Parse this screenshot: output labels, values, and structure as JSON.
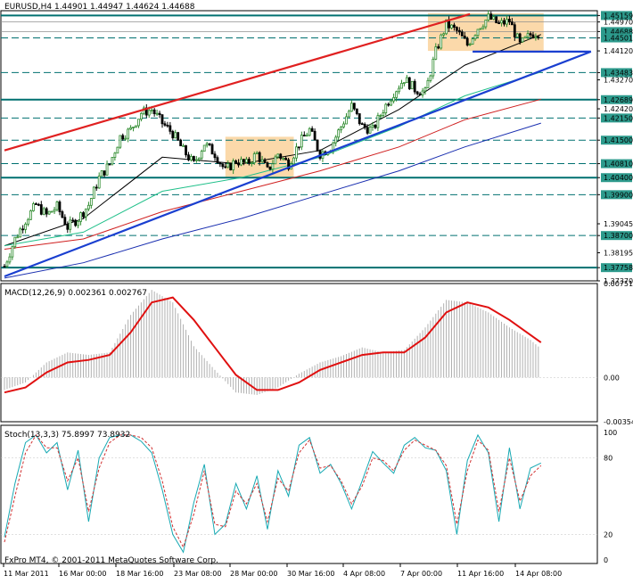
{
  "chart_data": [
    {
      "type": "candlestick",
      "title": "EURUSD,H4  1.44901 1.44947 1.44624 1.44688",
      "quote": {
        "open": 1.44901,
        "high": 1.44947,
        "low": 1.44624,
        "close": 1.44688
      },
      "ylim": [
        1.3737,
        1.453
      ],
      "price_axis_labels": [
        "1.45159",
        "1.44970",
        "1.44688",
        "1.44501",
        "1.44120",
        "1.43483",
        "1.43270",
        "1.42689",
        "1.42420",
        "1.42150",
        "1.41500",
        "1.40810",
        "1.40400",
        "1.39900",
        "1.39045",
        "1.38700",
        "1.38195",
        "1.37758",
        "1.37370"
      ],
      "highlighted_levels": [
        1.45159,
        1.44688,
        1.44501,
        1.43483,
        1.42689,
        1.4215,
        1.415,
        1.4081,
        1.404,
        1.399,
        1.387,
        1.37758
      ],
      "x_labels": [
        "11 Mar 2011",
        "16 Mar 00:00",
        "18 Mar 16:00",
        "23 Mar 08:00",
        "28 Mar 00:00",
        "30 Mar 16:00",
        "4 Apr 08:00",
        "7 Apr 00:00",
        "11 Apr 16:00",
        "14 Apr 08:00"
      ],
      "horizontal_lines": {
        "solid": [
          1.45159,
          1.42689,
          1.404,
          1.37758
        ],
        "dashed": [
          1.44501,
          1.43483,
          1.4215,
          1.415,
          1.4081,
          1.399,
          1.387
        ],
        "thin": [
          1.4497,
          1.44688
        ]
      },
      "trend_lines": [
        {
          "color": "#e02020",
          "from": [
            0,
            1.412
          ],
          "to": [
            177,
            1.452
          ]
        },
        {
          "color": "#1a3fd0",
          "from": [
            0,
            1.375
          ],
          "to": [
            223,
            1.441
          ]
        },
        {
          "color": "#1a3fd0",
          "from": [
            178,
            1.441
          ],
          "to": [
            223,
            1.441
          ]
        }
      ],
      "boxes": [
        {
          "color": "#fbd9aa",
          "x": [
            84,
            110
          ],
          "y": [
            1.4042,
            1.416
          ]
        },
        {
          "color": "#fbd9aa",
          "x": [
            161,
            205
          ],
          "y": [
            1.4412,
            1.4523
          ]
        }
      ],
      "close_path": [
        [
          0,
          1.378
        ],
        [
          4,
          1.386
        ],
        [
          8,
          1.3915
        ],
        [
          12,
          1.396
        ],
        [
          16,
          1.393
        ],
        [
          20,
          1.3955
        ],
        [
          24,
          1.3895
        ],
        [
          28,
          1.392
        ],
        [
          32,
          1.396
        ],
        [
          36,
          1.404
        ],
        [
          40,
          1.408
        ],
        [
          44,
          1.416
        ],
        [
          48,
          1.418
        ],
        [
          52,
          1.423
        ],
        [
          56,
          1.424
        ],
        [
          60,
          1.42
        ],
        [
          64,
          1.417
        ],
        [
          68,
          1.412
        ],
        [
          72,
          1.408
        ],
        [
          76,
          1.414
        ],
        [
          80,
          1.411
        ],
        [
          84,
          1.406
        ],
        [
          88,
          1.409
        ],
        [
          92,
          1.408
        ],
        [
          96,
          1.411
        ],
        [
          100,
          1.406
        ],
        [
          104,
          1.411
        ],
        [
          108,
          1.408
        ],
        [
          112,
          1.414
        ],
        [
          116,
          1.418
        ],
        [
          120,
          1.411
        ],
        [
          124,
          1.413
        ],
        [
          128,
          1.419
        ],
        [
          132,
          1.425
        ],
        [
          136,
          1.419
        ],
        [
          140,
          1.418
        ],
        [
          144,
          1.424
        ],
        [
          148,
          1.429
        ],
        [
          152,
          1.433
        ],
        [
          156,
          1.43
        ],
        [
          160,
          1.429
        ],
        [
          164,
          1.441
        ],
        [
          168,
          1.449
        ],
        [
          172,
          1.447
        ],
        [
          176,
          1.443
        ],
        [
          180,
          1.448
        ],
        [
          184,
          1.451
        ],
        [
          188,
          1.449
        ],
        [
          192,
          1.45
        ],
        [
          196,
          1.443
        ],
        [
          200,
          1.446
        ],
        [
          204,
          1.4469
        ]
      ],
      "moving_averages": [
        {
          "color": "#000000",
          "values": [
            [
              0,
              1.384
            ],
            [
              30,
              1.392
            ],
            [
              60,
              1.41
            ],
            [
              90,
              1.408
            ],
            [
              120,
              1.412
            ],
            [
              150,
              1.424
            ],
            [
              175,
              1.437
            ],
            [
              204,
              1.446
            ]
          ]
        },
        {
          "color": "#20c08a",
          "values": [
            [
              0,
              1.384
            ],
            [
              30,
              1.388
            ],
            [
              60,
              1.4
            ],
            [
              90,
              1.404
            ],
            [
              120,
              1.41
            ],
            [
              150,
              1.419
            ],
            [
              175,
              1.428
            ],
            [
              204,
              1.435
            ]
          ]
        },
        {
          "color": "#d02020",
          "values": [
            [
              0,
              1.383
            ],
            [
              30,
              1.386
            ],
            [
              60,
              1.394
            ],
            [
              90,
              1.4
            ],
            [
              120,
              1.406
            ],
            [
              150,
              1.413
            ],
            [
              175,
              1.421
            ],
            [
              204,
              1.427
            ]
          ]
        },
        {
          "color": "#1a2fb0",
          "values": [
            [
              0,
              1.3745
            ],
            [
              30,
              1.379
            ],
            [
              60,
              1.386
            ],
            [
              90,
              1.392
            ],
            [
              120,
              1.399
            ],
            [
              150,
              1.406
            ],
            [
              175,
              1.413
            ],
            [
              204,
              1.42
            ]
          ]
        }
      ]
    },
    {
      "type": "bar",
      "title": "MACD(12,26,9) 0.002361 0.002767",
      "ylim": [
        -0.00354,
        0.00751
      ],
      "price_axis_labels": [
        "0.00751",
        "0.00",
        "-0.00354"
      ],
      "x": [
        0,
        8,
        16,
        24,
        32,
        40,
        48,
        56,
        64,
        72,
        80,
        88,
        96,
        104,
        112,
        120,
        128,
        136,
        144,
        152,
        160,
        168,
        176,
        184,
        192,
        200,
        204
      ],
      "histogram": [
        -0.001,
        -0.0004,
        0.0012,
        0.002,
        0.0018,
        0.002,
        0.005,
        0.007,
        0.006,
        0.0025,
        0.0006,
        -0.0012,
        -0.0014,
        -0.0008,
        0.0003,
        0.0012,
        0.0017,
        0.0024,
        0.002,
        0.0022,
        0.004,
        0.0062,
        0.006,
        0.0052,
        0.004,
        0.003,
        0.0023
      ],
      "signal": [
        -0.0012,
        -0.0008,
        0.0004,
        0.0012,
        0.0014,
        0.0018,
        0.0036,
        0.006,
        0.0064,
        0.0046,
        0.0024,
        0.0002,
        -0.001,
        -0.001,
        -0.0004,
        0.0006,
        0.0012,
        0.0018,
        0.002,
        0.002,
        0.0032,
        0.0052,
        0.006,
        0.0056,
        0.0046,
        0.0034,
        0.0028
      ]
    },
    {
      "type": "line",
      "title": "Stoch(13,3,3) 75.8997 73.8932",
      "ylim": [
        0,
        100
      ],
      "price_axis_labels": [
        "100",
        "80",
        "20",
        "0"
      ],
      "x": [
        0,
        4,
        8,
        12,
        16,
        20,
        24,
        28,
        32,
        36,
        40,
        44,
        48,
        52,
        56,
        60,
        64,
        68,
        72,
        76,
        80,
        84,
        88,
        92,
        96,
        100,
        104,
        108,
        112,
        116,
        120,
        124,
        128,
        132,
        136,
        140,
        144,
        148,
        152,
        156,
        160,
        164,
        168,
        172,
        176,
        180,
        184,
        188,
        192,
        196,
        200,
        204
      ],
      "series": [
        {
          "color": "#17a9b3",
          "values": [
            18,
            60,
            92,
            98,
            84,
            92,
            55,
            86,
            30,
            80,
            96,
            98,
            98,
            93,
            84,
            55,
            20,
            6,
            45,
            75,
            20,
            28,
            60,
            40,
            66,
            24,
            70,
            50,
            90,
            96,
            68,
            75,
            60,
            40,
            62,
            85,
            76,
            68,
            90,
            96,
            88,
            86,
            70,
            20,
            78,
            98,
            84,
            30,
            88,
            40,
            72,
            76
          ]
        },
        {
          "color": "#d03030",
          "values": [
            14,
            50,
            84,
            98,
            88,
            88,
            62,
            80,
            38,
            72,
            92,
            98,
            98,
            96,
            88,
            62,
            26,
            10,
            36,
            70,
            28,
            26,
            54,
            44,
            60,
            30,
            64,
            54,
            84,
            94,
            72,
            74,
            62,
            44,
            58,
            80,
            78,
            70,
            86,
            94,
            90,
            86,
            74,
            28,
            70,
            94,
            86,
            38,
            80,
            46,
            66,
            74
          ]
        }
      ]
    }
  ],
  "footer": {
    "copyright": "FxPro MT4, © 2001-2011 MetaQuotes Software Corp."
  },
  "colors": {
    "bull": "#2e8b2e",
    "bear": "#000000",
    "grid": "#dcdcdc",
    "line_dark": "#007070",
    "label_bg": "#2d9a8c"
  }
}
